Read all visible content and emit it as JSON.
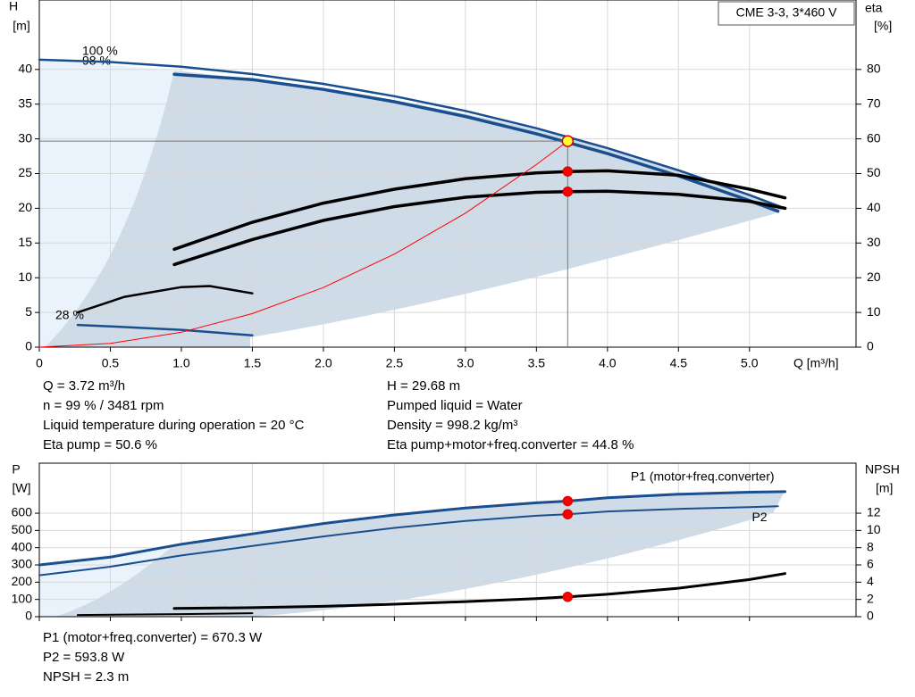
{
  "chart_data": [
    {
      "type": "line",
      "title": "CME 3-3, 3*460 V",
      "x_label": "Q [m³/h]",
      "y_label": "H",
      "y_unit": "[m]",
      "y2_label": "eta",
      "y2_unit": "[%]",
      "xlim": [
        0,
        5.75
      ],
      "xticks": [
        0,
        0.5,
        {
          "value": 1,
          "label": "1.0"
        },
        1.5,
        {
          "value": 2,
          "label": "2.0"
        },
        2.5,
        {
          "value": 3,
          "label": "3.0"
        },
        3.5,
        {
          "value": 4,
          "label": "4.0"
        },
        4.5,
        {
          "value": 5,
          "label": "5.0"
        }
      ],
      "ylim": [
        0,
        50
      ],
      "yticks": [
        0,
        5,
        10,
        15,
        20,
        25,
        30,
        35,
        40
      ],
      "y2lim": [
        0,
        100
      ],
      "y2ticks": [
        0,
        10,
        20,
        30,
        40,
        50,
        60,
        70,
        80
      ],
      "grid": true,
      "show_xtick_labels": true,
      "annotations": [
        "100 %",
        "98 %",
        "28 %"
      ],
      "series": [
        {
          "color": "#1a4f8f",
          "width": 2.5,
          "axis": "y",
          "x": [
            0,
            0.5,
            1,
            1.5,
            2,
            2.5,
            3,
            3.5,
            4,
            4.5,
            5,
            5.25
          ],
          "values": [
            41.4,
            41.07,
            40.38,
            39.33,
            37.92,
            36.15,
            34.02,
            31.53,
            28.68,
            25.47,
            21.9,
            19.98
          ]
        },
        {
          "color": "#1a4f8f",
          "width": 3.5,
          "axis": "y",
          "x": [
            0.95,
            1.5,
            2,
            2.5,
            3,
            3.5,
            4,
            4.5,
            5,
            5.2
          ],
          "values": [
            39.3,
            38.53,
            37.12,
            35.35,
            33.22,
            30.73,
            27.88,
            24.67,
            21.1,
            19.57
          ]
        },
        {
          "color": "#1a4f8f",
          "width": 2.5,
          "axis": "y",
          "x": [
            0.27,
            0.5,
            1,
            1.5
          ],
          "values": [
            3.2,
            3.0,
            2.5,
            1.7
          ]
        },
        {
          "color": "#000000",
          "width": 3.5,
          "axis": "y2",
          "x": [
            0.95,
            1.5,
            2,
            2.5,
            3,
            3.5,
            3.72,
            4,
            4.5,
            5,
            5.25
          ],
          "values": [
            28.2,
            36,
            41.5,
            45.5,
            48.5,
            50.2,
            50.6,
            50.8,
            49.5,
            45.5,
            43
          ]
        },
        {
          "color": "#000000",
          "width": 3.5,
          "axis": "y2",
          "x": [
            0.95,
            1.5,
            2,
            2.5,
            3,
            3.5,
            3.72,
            4,
            4.5,
            5,
            5.25
          ],
          "values": [
            23.8,
            31,
            36.5,
            40.5,
            43.2,
            44.6,
            44.8,
            44.9,
            44,
            42,
            40
          ]
        },
        {
          "color": "#000000",
          "width": 2.5,
          "axis": "y2",
          "x": [
            0.27,
            0.6,
            1,
            1.2,
            1.5
          ],
          "values": [
            10,
            14.5,
            17.3,
            17.6,
            15.5
          ]
        },
        {
          "color": "#ff0000",
          "width": 1,
          "axis": "y",
          "x": [
            0,
            0.5,
            1,
            1.5,
            2,
            2.5,
            3,
            3.5,
            3.72
          ],
          "values": [
            0,
            0.54,
            2.15,
            4.83,
            8.58,
            13.4,
            19.3,
            26.3,
            29.68
          ]
        }
      ],
      "markers": [
        {
          "x": 3.72,
          "value": 29.68,
          "axis": "y",
          "color": "#ffff33"
        },
        {
          "x": 3.72,
          "value": 50.6,
          "axis": "y2",
          "color": "#ff0000"
        },
        {
          "x": 3.72,
          "value": 44.8,
          "axis": "y2",
          "color": "#ff0000"
        }
      ]
    },
    {
      "type": "line",
      "y_label": "P",
      "y_unit": "[W]",
      "y2_label": "NPSH",
      "y2_unit": "[m]",
      "xlim": [
        0,
        5.75
      ],
      "xticks": [
        0,
        0.5,
        1,
        1.5,
        2,
        2.5,
        3,
        3.5,
        4,
        4.5,
        5
      ],
      "ylim": [
        0,
        890
      ],
      "yticks": [
        0,
        100,
        200,
        300,
        400,
        500,
        600
      ],
      "y2lim": [
        0,
        17.8
      ],
      "y2ticks": [
        0,
        2,
        4,
        6,
        8,
        10,
        12
      ],
      "grid": true,
      "show_xtick_labels": false,
      "series": [
        {
          "name": "P1 (motor+freq.converter)",
          "color": "#1a4f8f",
          "width": 3,
          "axis": "y",
          "x": [
            0,
            0.5,
            1,
            1.5,
            2,
            2.5,
            3,
            3.5,
            3.72,
            4,
            4.5,
            5,
            5.25
          ],
          "values": [
            300,
            345,
            420,
            480,
            540,
            590,
            630,
            660,
            670.3,
            690,
            710,
            722,
            725
          ]
        },
        {
          "name": "P2",
          "color": "#1a4f8f",
          "width": 2,
          "axis": "y",
          "x": [
            0,
            0.5,
            1,
            1.5,
            2,
            2.5,
            3,
            3.5,
            3.72,
            4,
            4.5,
            5,
            5.2
          ],
          "values": [
            240,
            290,
            355,
            410,
            465,
            515,
            555,
            585,
            593.8,
            610,
            625,
            635,
            640
          ]
        },
        {
          "color": "#000000",
          "width": 3,
          "axis": "y2",
          "x": [
            0.95,
            1.5,
            2,
            2.5,
            3,
            3.5,
            3.72,
            4,
            4.5,
            5,
            5.25
          ],
          "values": [
            0.95,
            1.05,
            1.2,
            1.45,
            1.75,
            2.1,
            2.3,
            2.6,
            3.3,
            4.3,
            5.0
          ]
        },
        {
          "color": "#000000",
          "width": 2,
          "axis": "y2",
          "x": [
            0.27,
            1,
            1.5
          ],
          "values": [
            0.2,
            0.3,
            0.4
          ]
        }
      ],
      "markers": [
        {
          "x": 3.72,
          "value": 670.3,
          "axis": "y",
          "color": "#ff0000"
        },
        {
          "x": 3.72,
          "value": 593.8,
          "axis": "y",
          "color": "#ff0000"
        },
        {
          "x": 3.72,
          "value": 2.3,
          "axis": "y2",
          "color": "#ff0000"
        }
      ]
    }
  ],
  "info_top_left": [
    "Q = 3.72 m³/h",
    "n = 99 % / 3481 rpm",
    "Liquid temperature during operation = 20 °C",
    "Eta pump = 50.6 %"
  ],
  "info_top_right": [
    "H = 29.68 m",
    "Pumped liquid = Water",
    "Density = 998.2 kg/m³",
    "Eta pump+motor+freq.converter = 44.8 %"
  ],
  "info_bottom": [
    "P1 (motor+freq.converter) = 670.3 W",
    "P2 = 593.8 W",
    "NPSH = 2.3 m"
  ]
}
